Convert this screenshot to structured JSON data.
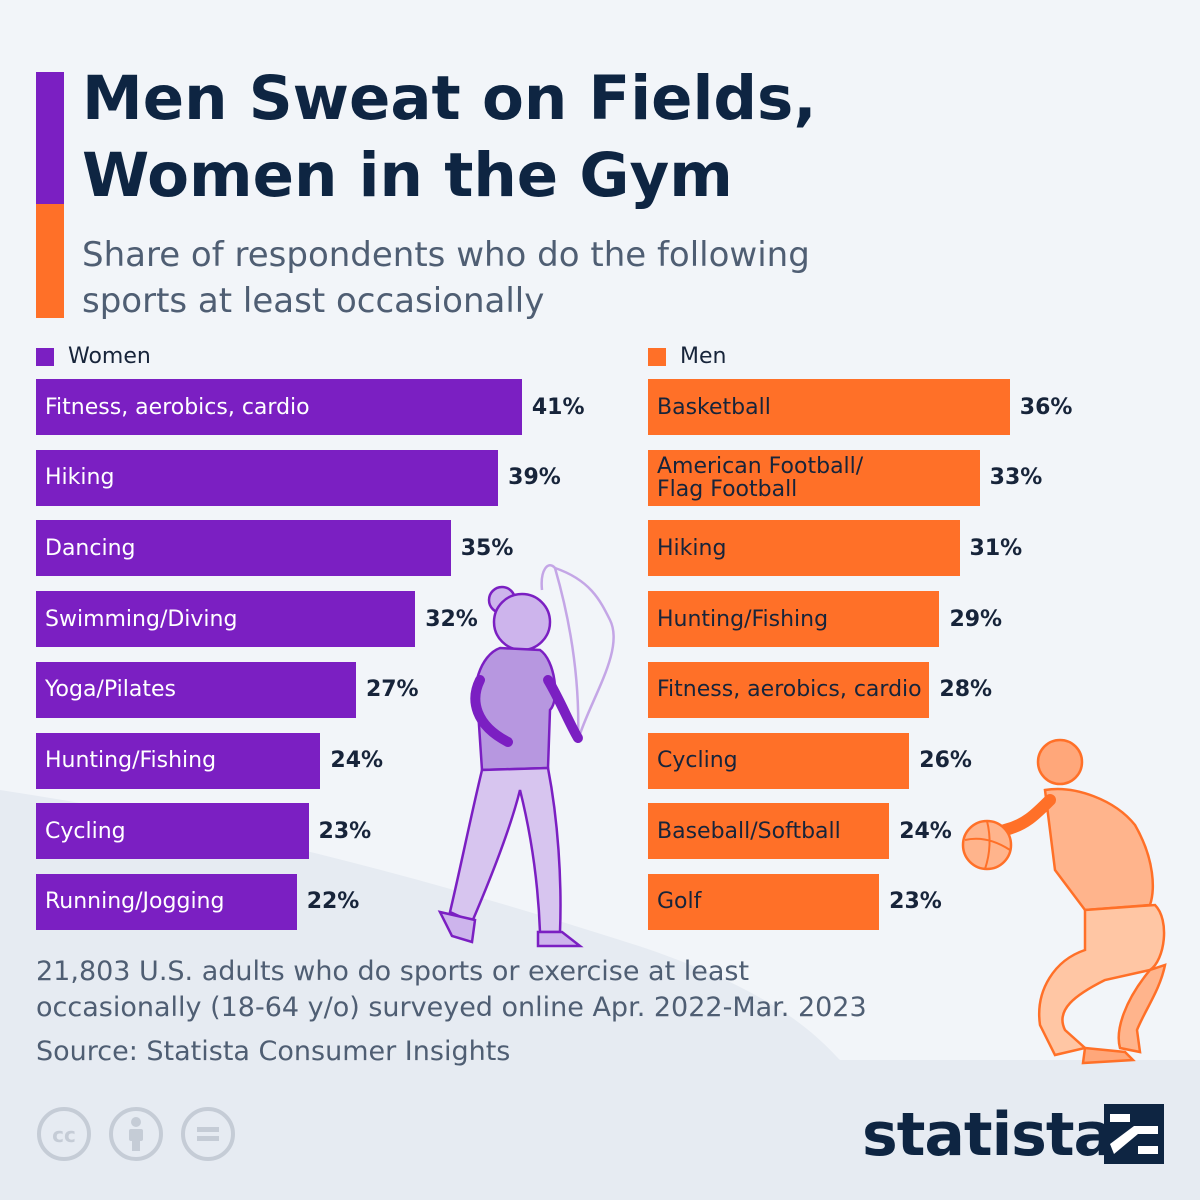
{
  "header": {
    "title": "Men Sweat on Fields,\nWomen in the Gym",
    "subtitle": "Share of respondents who do the following\nsports at least occasionally"
  },
  "colors": {
    "women": "#7b1fc2",
    "men": "#ff7028",
    "title": "#0e2542",
    "background": "#f2f5f9"
  },
  "legend": {
    "women": "Women",
    "men": "Men"
  },
  "chart_data": [
    {
      "type": "bar",
      "orientation": "horizontal",
      "series_name": "Women",
      "categories": [
        "Fitness, aerobics, cardio",
        "Hiking",
        "Dancing",
        "Swimming/Diving",
        "Yoga/Pilates",
        "Hunting/Fishing",
        "Cycling",
        "Running/Jogging"
      ],
      "values": [
        41,
        39,
        35,
        32,
        27,
        24,
        23,
        22
      ],
      "value_labels": [
        "41%",
        "39%",
        "35%",
        "32%",
        "27%",
        "24%",
        "23%",
        "22%"
      ],
      "unit": "%",
      "grid": false
    },
    {
      "type": "bar",
      "orientation": "horizontal",
      "series_name": "Men",
      "categories": [
        "Basketball",
        "American Football/\nFlag Football",
        "Hiking",
        "Hunting/Fishing",
        "Fitness, aerobics, cardio",
        "Cycling",
        "Baseball/Softball",
        "Golf"
      ],
      "values": [
        36,
        33,
        31,
        29,
        28,
        26,
        24,
        23
      ],
      "value_labels": [
        "36%",
        "33%",
        "31%",
        "29%",
        "28%",
        "26%",
        "24%",
        "23%"
      ],
      "unit": "%",
      "grid": false
    }
  ],
  "footer": {
    "note": "21,803 U.S. adults who do sports or exercise at least\noccasionally (18-64 y/o) surveyed online Apr. 2022-Mar. 2023",
    "source": "Source: Statista Consumer Insights",
    "brand": "statista",
    "license_icons": [
      "cc-icon",
      "attribution-icon",
      "no-derivatives-icon"
    ]
  }
}
